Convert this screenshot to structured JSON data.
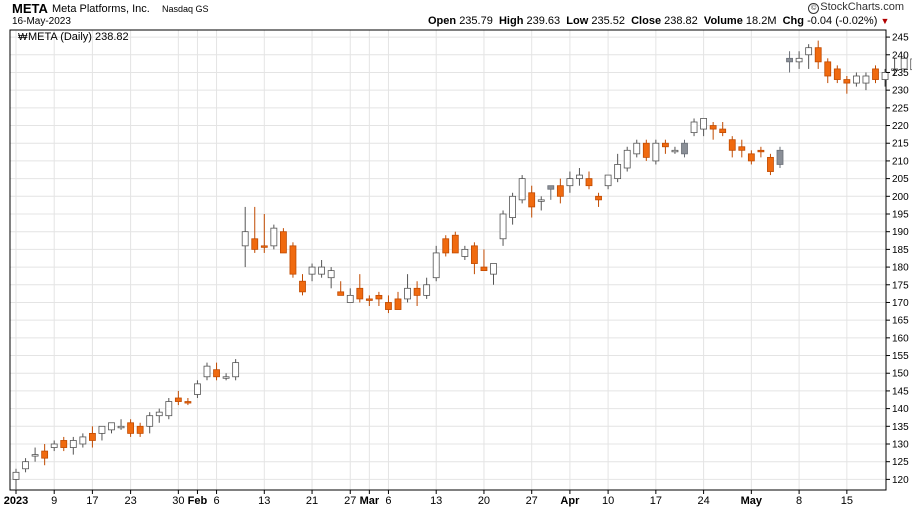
{
  "header": {
    "ticker": "META",
    "company": "Meta Platforms, Inc.",
    "exchange": "Nasdaq GS",
    "date": "16-May-2023",
    "brand": "StockCharts.com",
    "open_label": "Open",
    "open": "235.79",
    "high_label": "High",
    "high": "239.63",
    "low_label": "Low",
    "low": "235.52",
    "close_label": "Close",
    "close": "238.82",
    "volume_label": "Volume",
    "volume": "18.2M",
    "chg_label": "Chg",
    "chg": "-0.04 (-0.02%)"
  },
  "chart_data": {
    "type": "candlestick",
    "legend": "META (Daily) 238.82",
    "legend_icon": "stockcharts-icon",
    "ylim": [
      117,
      247
    ],
    "y_ticks": [
      120,
      125,
      130,
      135,
      140,
      145,
      150,
      155,
      160,
      165,
      170,
      175,
      180,
      185,
      190,
      195,
      200,
      205,
      210,
      215,
      220,
      225,
      230,
      235,
      240,
      245
    ],
    "x_ticks": [
      {
        "label": "2023",
        "i": 0,
        "bold": true
      },
      {
        "label": "9",
        "i": 4
      },
      {
        "label": "17",
        "i": 8
      },
      {
        "label": "23",
        "i": 12
      },
      {
        "label": "30",
        "i": 17
      },
      {
        "label": "Feb",
        "i": 19,
        "bold": true
      },
      {
        "label": "6",
        "i": 21
      },
      {
        "label": "13",
        "i": 26
      },
      {
        "label": "21",
        "i": 31
      },
      {
        "label": "27",
        "i": 35
      },
      {
        "label": "Mar",
        "i": 37,
        "bold": true
      },
      {
        "label": "6",
        "i": 39
      },
      {
        "label": "13",
        "i": 44
      },
      {
        "label": "20",
        "i": 49
      },
      {
        "label": "27",
        "i": 54
      },
      {
        "label": "Apr",
        "i": 58,
        "bold": true
      },
      {
        "label": "10",
        "i": 62
      },
      {
        "label": "17",
        "i": 67
      },
      {
        "label": "24",
        "i": 72
      },
      {
        "label": "May",
        "i": 77,
        "bold": true
      },
      {
        "label": "8",
        "i": 82
      },
      {
        "label": "15",
        "i": 87
      }
    ],
    "candles": [
      {
        "o": 120,
        "h": 123,
        "l": 117,
        "c": 122,
        "k": "up"
      },
      {
        "o": 123,
        "h": 126,
        "l": 122,
        "c": 125,
        "k": "up"
      },
      {
        "o": 127,
        "h": 129,
        "l": 125,
        "c": 127,
        "k": "up"
      },
      {
        "o": 128,
        "h": 130,
        "l": 124,
        "c": 126,
        "k": "dn"
      },
      {
        "o": 129,
        "h": 131,
        "l": 128,
        "c": 130,
        "k": "up"
      },
      {
        "o": 131,
        "h": 132,
        "l": 128,
        "c": 129,
        "k": "dn"
      },
      {
        "o": 129,
        "h": 132,
        "l": 127,
        "c": 131,
        "k": "up"
      },
      {
        "o": 130,
        "h": 133,
        "l": 129,
        "c": 132,
        "k": "up"
      },
      {
        "o": 131,
        "h": 135,
        "l": 129,
        "c": 133,
        "k": "dn"
      },
      {
        "o": 133,
        "h": 135,
        "l": 131,
        "c": 135,
        "k": "up"
      },
      {
        "o": 134,
        "h": 136,
        "l": 133,
        "c": 136,
        "k": "up"
      },
      {
        "o": 135,
        "h": 137,
        "l": 134,
        "c": 135,
        "k": "up"
      },
      {
        "o": 136,
        "h": 137,
        "l": 132,
        "c": 133,
        "k": "dn"
      },
      {
        "o": 133,
        "h": 136,
        "l": 132,
        "c": 135,
        "k": "dn"
      },
      {
        "o": 135,
        "h": 139,
        "l": 133,
        "c": 138,
        "k": "up"
      },
      {
        "o": 138,
        "h": 140,
        "l": 136,
        "c": 139,
        "k": "up"
      },
      {
        "o": 138,
        "h": 143,
        "l": 137,
        "c": 142,
        "k": "up"
      },
      {
        "o": 142,
        "h": 145,
        "l": 141,
        "c": 143,
        "k": "dn"
      },
      {
        "o": 142,
        "h": 143,
        "l": 141,
        "c": 142,
        "k": "dn"
      },
      {
        "o": 144,
        "h": 148,
        "l": 143,
        "c": 147,
        "k": "up"
      },
      {
        "o": 149,
        "h": 153,
        "l": 148,
        "c": 152,
        "k": "up"
      },
      {
        "o": 151,
        "h": 153,
        "l": 148,
        "c": 149,
        "k": "dn"
      },
      {
        "o": 149,
        "h": 150,
        "l": 148,
        "c": 149,
        "k": "up"
      },
      {
        "o": 149,
        "h": 154,
        "l": 148,
        "c": 153,
        "k": "up"
      },
      {
        "o": 186,
        "h": 197,
        "l": 180,
        "c": 190,
        "k": "up"
      },
      {
        "o": 188,
        "h": 197,
        "l": 184,
        "c": 185,
        "k": "dn"
      },
      {
        "o": 186,
        "h": 195,
        "l": 184,
        "c": 186,
        "k": "dn"
      },
      {
        "o": 186,
        "h": 192,
        "l": 185,
        "c": 191,
        "k": "up"
      },
      {
        "o": 190,
        "h": 191,
        "l": 184,
        "c": 184,
        "k": "dn"
      },
      {
        "o": 186,
        "h": 187,
        "l": 177,
        "c": 178,
        "k": "dn"
      },
      {
        "o": 176,
        "h": 178,
        "l": 172,
        "c": 173,
        "k": "dn"
      },
      {
        "o": 178,
        "h": 181,
        "l": 176,
        "c": 180,
        "k": "up"
      },
      {
        "o": 178,
        "h": 182,
        "l": 177,
        "c": 180,
        "k": "up"
      },
      {
        "o": 179,
        "h": 180,
        "l": 174,
        "c": 177,
        "k": "up"
      },
      {
        "o": 173,
        "h": 176,
        "l": 172,
        "c": 172,
        "k": "dn"
      },
      {
        "o": 172,
        "h": 174,
        "l": 170,
        "c": 170,
        "k": "up"
      },
      {
        "o": 174,
        "h": 178,
        "l": 170,
        "c": 171,
        "k": "dn"
      },
      {
        "o": 171,
        "h": 172,
        "l": 169,
        "c": 171,
        "k": "dn"
      },
      {
        "o": 171,
        "h": 173,
        "l": 169,
        "c": 172,
        "k": "dn"
      },
      {
        "o": 170,
        "h": 172,
        "l": 167,
        "c": 168,
        "k": "dn"
      },
      {
        "o": 168,
        "h": 173,
        "l": 168,
        "c": 171,
        "k": "dn"
      },
      {
        "o": 171,
        "h": 178,
        "l": 170,
        "c": 174,
        "k": "up"
      },
      {
        "o": 172,
        "h": 176,
        "l": 169,
        "c": 174,
        "k": "dn"
      },
      {
        "o": 172,
        "h": 177,
        "l": 171,
        "c": 175,
        "k": "up"
      },
      {
        "o": 177,
        "h": 186,
        "l": 176,
        "c": 184,
        "k": "up"
      },
      {
        "o": 184,
        "h": 189,
        "l": 183,
        "c": 188,
        "k": "dn"
      },
      {
        "o": 189,
        "h": 190,
        "l": 184,
        "c": 184,
        "k": "dn"
      },
      {
        "o": 183,
        "h": 186,
        "l": 182,
        "c": 185,
        "k": "up"
      },
      {
        "o": 186,
        "h": 187,
        "l": 178,
        "c": 181,
        "k": "dn"
      },
      {
        "o": 180,
        "h": 185,
        "l": 179,
        "c": 179,
        "k": "dn"
      },
      {
        "o": 178,
        "h": 181,
        "l": 175,
        "c": 181,
        "k": "up"
      },
      {
        "o": 188,
        "h": 196,
        "l": 186,
        "c": 195,
        "k": "up"
      },
      {
        "o": 194,
        "h": 201,
        "l": 192,
        "c": 200,
        "k": "up"
      },
      {
        "o": 199,
        "h": 206,
        "l": 198,
        "c": 205,
        "k": "up"
      },
      {
        "o": 201,
        "h": 203,
        "l": 194,
        "c": 197,
        "k": "dn"
      },
      {
        "o": 199,
        "h": 200,
        "l": 196,
        "c": 199,
        "k": "up"
      },
      {
        "o": 202,
        "h": 203,
        "l": 199,
        "c": 203,
        "k": "gr"
      },
      {
        "o": 203,
        "h": 205,
        "l": 198,
        "c": 200,
        "k": "dn"
      },
      {
        "o": 203,
        "h": 207,
        "l": 201,
        "c": 205,
        "k": "up"
      },
      {
        "o": 205,
        "h": 208,
        "l": 203,
        "c": 206,
        "k": "up"
      },
      {
        "o": 205,
        "h": 207,
        "l": 202,
        "c": 203,
        "k": "dn"
      },
      {
        "o": 200,
        "h": 201,
        "l": 197,
        "c": 199,
        "k": "dn"
      },
      {
        "o": 203,
        "h": 206,
        "l": 202,
        "c": 206,
        "k": "up"
      },
      {
        "o": 205,
        "h": 212,
        "l": 204,
        "c": 209,
        "k": "up"
      },
      {
        "o": 208,
        "h": 214,
        "l": 207,
        "c": 213,
        "k": "up"
      },
      {
        "o": 212,
        "h": 216,
        "l": 211,
        "c": 215,
        "k": "up"
      },
      {
        "o": 215,
        "h": 216,
        "l": 210,
        "c": 211,
        "k": "dn"
      },
      {
        "o": 210,
        "h": 216,
        "l": 209,
        "c": 215,
        "k": "up"
      },
      {
        "o": 214,
        "h": 216,
        "l": 212,
        "c": 215,
        "k": "dn"
      },
      {
        "o": 213,
        "h": 214,
        "l": 212,
        "c": 213,
        "k": "up"
      },
      {
        "o": 212,
        "h": 216,
        "l": 211,
        "c": 215,
        "k": "gr"
      },
      {
        "o": 218,
        "h": 222,
        "l": 217,
        "c": 221,
        "k": "up"
      },
      {
        "o": 219,
        "h": 222,
        "l": 217,
        "c": 222,
        "k": "up"
      },
      {
        "o": 220,
        "h": 221,
        "l": 216,
        "c": 219,
        "k": "dn"
      },
      {
        "o": 219,
        "h": 221,
        "l": 217,
        "c": 218,
        "k": "dn"
      },
      {
        "o": 216,
        "h": 217,
        "l": 211,
        "c": 213,
        "k": "dn"
      },
      {
        "o": 214,
        "h": 216,
        "l": 211,
        "c": 213,
        "k": "dn"
      },
      {
        "o": 212,
        "h": 213,
        "l": 209,
        "c": 210,
        "k": "dn"
      },
      {
        "o": 213,
        "h": 214,
        "l": 211,
        "c": 213,
        "k": "dn"
      },
      {
        "o": 211,
        "h": 212,
        "l": 206,
        "c": 207,
        "k": "dn"
      },
      {
        "o": 209,
        "h": 214,
        "l": 208,
        "c": 213,
        "k": "gr"
      },
      {
        "o": 238,
        "h": 241,
        "l": 235,
        "c": 239,
        "k": "gr"
      },
      {
        "o": 238,
        "h": 241,
        "l": 236,
        "c": 239,
        "k": "up"
      },
      {
        "o": 240,
        "h": 243,
        "l": 236,
        "c": 242,
        "k": "up"
      },
      {
        "o": 242,
        "h": 244,
        "l": 236,
        "c": 238,
        "k": "dn"
      },
      {
        "o": 238,
        "h": 239,
        "l": 232,
        "c": 234,
        "k": "dn"
      },
      {
        "o": 236,
        "h": 237,
        "l": 232,
        "c": 233,
        "k": "dn"
      },
      {
        "o": 233,
        "h": 234,
        "l": 229,
        "c": 232,
        "k": "dn"
      },
      {
        "o": 232,
        "h": 235,
        "l": 231,
        "c": 234,
        "k": "up"
      },
      {
        "o": 232,
        "h": 235,
        "l": 230,
        "c": 234,
        "k": "up"
      },
      {
        "o": 233,
        "h": 237,
        "l": 232,
        "c": 236,
        "k": "dn"
      },
      {
        "o": 233,
        "h": 236,
        "l": 231,
        "c": 235,
        "k": "up"
      },
      {
        "o": 236,
        "h": 239,
        "l": 234,
        "c": 236,
        "k": "up"
      },
      {
        "o": 236,
        "h": 240,
        "l": 235,
        "c": 239,
        "k": "up"
      },
      {
        "o": 235.79,
        "h": 239.63,
        "l": 235.52,
        "c": 238.82,
        "k": "up"
      }
    ],
    "colors": {
      "up": "#ffffff",
      "up_stroke": "#555555",
      "dn": "#f06a0f",
      "dn_stroke": "#c04a00",
      "gr": "#8a8f97",
      "grid": "#e4e4e4",
      "axis": "#000000"
    }
  }
}
